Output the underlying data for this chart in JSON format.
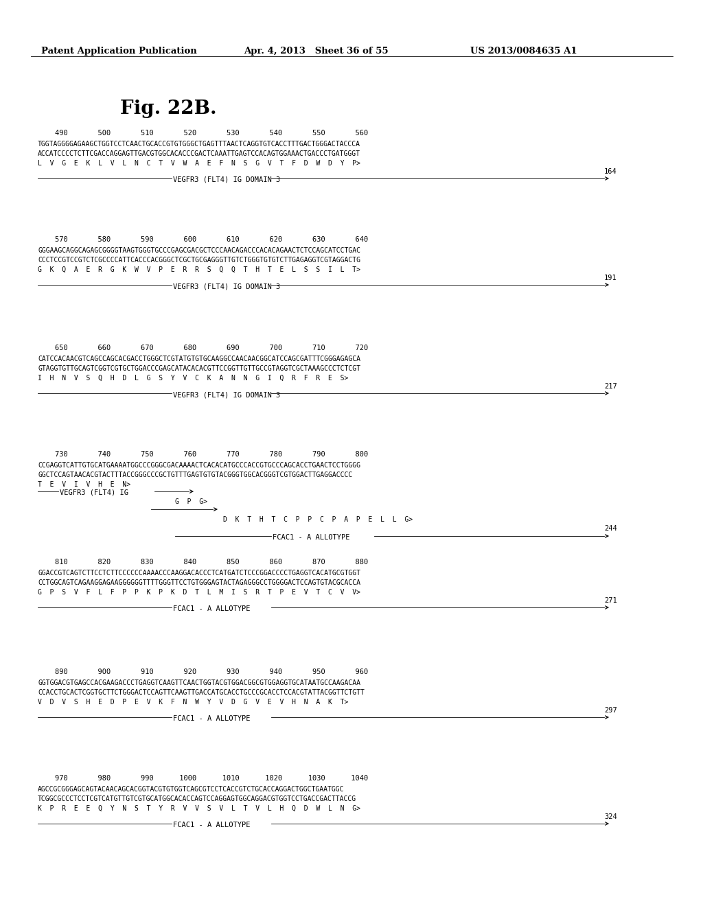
{
  "header_left": "Patent Application Publication",
  "header_mid": "Apr. 4, 2013   Sheet 36 of 55",
  "header_right": "US 2013/0084635 A1",
  "figure_title": "Fig. 22B.",
  "background": "#ffffff",
  "blocks": [
    {
      "nums": "    490       500       510       520       530       540       550       560",
      "dna1": "TGGTAGGGGAGAAGCTGGTCCTCAACTGCACCGTGTGGGCTGAGTTTAACTCAGGTGTCACCTTTGACTGGGACTACCCA",
      "dna2": "ACCATCCCCTCTTCGACCAGGAGTTGACGTGGCACACCCGACTCAAATTGAGTCCACAGTGGAAACTGACCCTGATGGGT",
      "aa": "L  V  G  E  K  L  V  L  N  C  T  V  W  A  E  F  N  S  G  V  T  F  D  W  D  Y  P>",
      "aa_num": "164",
      "label": "VEGFR3 (FLT4) IG DOMAIN 3",
      "special": false
    },
    {
      "nums": "    570       580       590       600       610       620       630       640",
      "dna1": "GGGAAGCAGGCAGAGCGGGGTAAGTGGGTGCCCGAGCGACGCTCCCAACAGACCCACACAGAACTCTCCAGCATCCTGAC",
      "dna2": "CCCTCCGTCCGTCTCGCCCCATTCACCCACGGGCTCGCTGCGAGGGTTGTCTGGGTGTGTCTTGAGAGGTCGTAGGACTG",
      "aa": "G  K  Q  A  E  R  G  K  W  V  P  E  R  R  S  Q  Q  T  H  T  E  L  S  S  I  L  T>",
      "aa_num": "191",
      "label": "VEGFR3 (FLT4) IG DOMAIN 3",
      "special": false
    },
    {
      "nums": "    650       660       670       680       690       700       710       720",
      "dna1": "CATCCACAACGTCAGCCAGCACGACCTGGGCTCGTATGTGTGCAAGGCCAACAACGGCATCCAGCGATTTCGGGAGAGCA",
      "dna2": "GTAGGTGTTGCAGTCGGTCGTGCTGGACCCGAGCATACACACGTTCCGGTTGTTGCCGTAGGTCGCTAAAGCCCTCTCGT",
      "aa": "I  H  N  V  S  Q  H  D  L  G  S  Y  V  C  K  A  N  N  G  I  Q  R  F  R  E  S>",
      "aa_num": "217",
      "label": "VEGFR3 (FLT4) IG DOMAIN 3",
      "special": false
    },
    {
      "nums": "    730       740       750       760       770       780       790       800",
      "dna1": "CCGAGGTCATTGTGCATGAAAATGGCCCGGGCGACAAAACTCACACATGCCCACCGTGCCCAGCACCTGAACTCCTGGGG",
      "dna2": "GGCTCCAGTAACACGTACTTTACCGGGCCCGCTGTTTGAGTGTGTACGGGTGGCACGGGTCGTGGACTTGAGGACCCC",
      "aa": "T  E  V  I  V  H  E  N>",
      "aa_num": null,
      "label": "VEGFR3 (FLT4) IG",
      "special": true,
      "gpg": "G  P  G>",
      "dktht": "D  K  T  H  T  C  P  P  C  P  A  P  E  L  L  G>",
      "dktht_num": "244",
      "label2": "FCAC1 - A ALLOTYPE"
    },
    {
      "nums": "    810       820       830       840       850       860       870       880",
      "dna1": "GGACCGTCAGTCTTCCTCTTCCCCCCAAAACCCAAGGACACCCTCATGATCTCCCGGACCCCTGAGGTCACATGCGTGGT",
      "dna2": "CCTGGCAGTCAGAAGGAGAAGGGGGGTTTTGGGTTCCTGTGGGAGTACTAGAGGGCCTGGGGACTCCAGTGTACGCACCA",
      "aa": "G  P  S  V  F  L  F  P  P  K  P  K  D  T  L  M  I  S  R  T  P  E  V  T  C  V  V>",
      "aa_num": "271",
      "label": "FCAC1 - A ALLOTYPE",
      "special": false
    },
    {
      "nums": "    890       900       910       920       930       940       950       960",
      "dna1": "GGTGGACGTGAGCCACGAAGACCCTGAGGTCAAGTTCAACTGGTACGTGGACGGCGTGGAGGTGCATAATGCCAAGACAA",
      "dna2": "CCACCTGCACTCGGTGCTTCTGGGACTCCAGTTCAAGTTGACCATGCACCTGCCCGCACCTCCACGTATTACGGTTCTGTT",
      "aa": "V  D  V  S  H  E  D  P  E  V  K  F  N  W  Y  V  D  G  V  E  V  H  N  A  K  T>",
      "aa_num": "297",
      "label": "FCAC1 - A ALLOTYPE",
      "special": false
    },
    {
      "nums": "    970       980       990      1000      1010      1020      1030      1040",
      "dna1": "AGCCGCGGGAGCAGTACAACAGCACGGTACGTGTGGTCAGCGTCCTCACCGTCTGCACCAGGACTGGCTGAATGGC",
      "dna2": "TCGGCGCCCTCCTCGTCATGTTGTCGTGCATGGCACACCAGTCCAGGAGTGGCAGGACGTGGTCCTGACCGACTTACCG",
      "aa": "K  P  R  E  E  Q  Y  N  S  T  Y  R  V  V  S  V  L  T  V  L  H  Q  D  W  L  N  G>",
      "aa_num": "324",
      "label": "FCAC1 - A ALLOTYPE",
      "special": false
    }
  ]
}
